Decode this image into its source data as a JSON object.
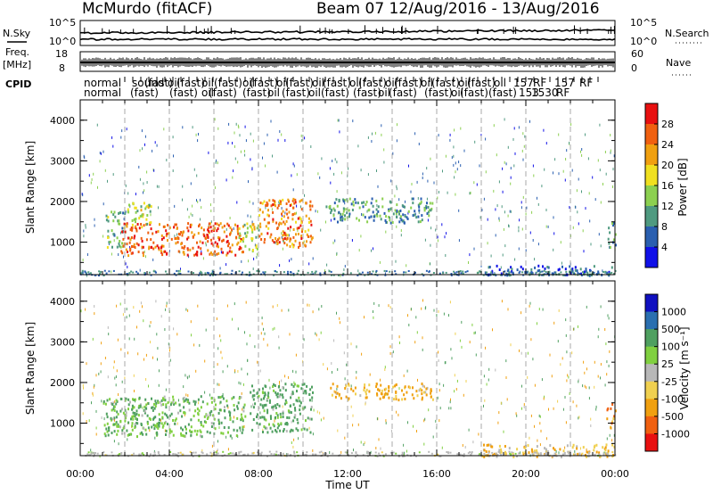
{
  "header": {
    "station": "McMurdo (fitACF)",
    "beam_info": "Beam 07  12/Aug/2016 - 13/Aug/2016"
  },
  "status_panels": {
    "nsky_label": "N.Sky",
    "nsearch_label": "N.Search",
    "nsky_ticks": [
      "10^5",
      "10^0"
    ],
    "nsearch_ticks": [
      "10^5",
      "10^0"
    ],
    "freq_label": "Freq.",
    "freq_unit": "[MHz]",
    "freq_ticks": [
      "18",
      "8"
    ],
    "nave_label": "Nave",
    "nave_ticks": [
      "60",
      "0"
    ],
    "cpid_label": "CPID",
    "cpid_top": [
      {
        "t": "normal",
        "x": 94
      },
      {
        "t": "sound",
        "x": 148
      },
      {
        "t": "(fast)",
        "x": 162
      },
      {
        "t": "oil",
        "x": 188
      },
      {
        "t": "(fast)",
        "x": 198
      },
      {
        "t": "oil",
        "x": 226
      },
      {
        "t": "(fast)",
        "x": 240
      },
      {
        "t": "oil",
        "x": 272
      },
      {
        "t": "(fast)",
        "x": 280
      },
      {
        "t": "oil",
        "x": 310
      },
      {
        "t": "(fast)",
        "x": 320
      },
      {
        "t": "oil",
        "x": 350
      },
      {
        "t": "(fast)",
        "x": 362
      },
      {
        "t": "oil",
        "x": 392
      },
      {
        "t": "(fast)",
        "x": 402
      },
      {
        "t": "oil",
        "x": 432
      },
      {
        "t": "(fast)",
        "x": 442
      },
      {
        "t": "oil",
        "x": 472
      },
      {
        "t": "(fast)",
        "x": 484
      },
      {
        "t": "oil",
        "x": 514
      },
      {
        "t": "(fast)",
        "x": 524
      },
      {
        "t": "oil",
        "x": 554
      },
      {
        "t": "157",
        "x": 576
      },
      {
        "t": "RF",
        "x": 598
      },
      {
        "t": "157",
        "x": 622
      },
      {
        "t": "RF",
        "x": 650
      }
    ],
    "cpid_bottom": [
      {
        "t": "normal",
        "x": 94
      },
      {
        "t": "(fast)",
        "x": 146
      },
      {
        "t": "(fast)",
        "x": 190
      },
      {
        "t": "oil",
        "x": 226
      },
      {
        "t": "(fast)",
        "x": 234
      },
      {
        "t": "(fast)",
        "x": 272
      },
      {
        "t": "oil",
        "x": 300
      },
      {
        "t": "(fast)",
        "x": 316
      },
      {
        "t": "oil",
        "x": 346
      },
      {
        "t": "(fast)",
        "x": 360
      },
      {
        "t": "(fast)",
        "x": 396
      },
      {
        "t": "oil",
        "x": 424
      },
      {
        "t": "(fast)",
        "x": 436
      },
      {
        "t": "(fast)",
        "x": 476
      },
      {
        "t": "oil",
        "x": 506
      },
      {
        "t": "(fast)",
        "x": 516
      },
      {
        "t": "(fast)",
        "x": 548
      },
      {
        "t": "153",
        "x": 582
      },
      {
        "t": "1530",
        "x": 596
      },
      {
        "t": "RF",
        "x": 624
      }
    ]
  },
  "colors": {
    "power_scale": [
      "#1010e8",
      "#2a5fb0",
      "#4f9a80",
      "#8cd050",
      "#f0e020",
      "#f0a010",
      "#f06010",
      "#e81010"
    ],
    "velocity_scale": [
      "#e81010",
      "#f06010",
      "#f0a010",
      "#f0d050",
      "#b8b8b8",
      "#80d040",
      "#4fa060",
      "#2a6fb0",
      "#1010c0"
    ]
  },
  "chart_data": [
    {
      "type": "heatmap",
      "panel": "power",
      "ylabel": "Slant Range [km]",
      "ylim": [
        200,
        4500
      ],
      "y_ticks": [
        "4000",
        "3000",
        "2000",
        "1000"
      ],
      "x_range_hours": [
        0,
        24
      ],
      "colorbar": {
        "label": "Power [dB]",
        "ticks": [
          "28",
          "24",
          "20",
          "16",
          "12",
          "8",
          "4"
        ],
        "range": [
          0,
          32
        ]
      },
      "echo_regions": [
        {
          "t0": 1.1,
          "t1": 2.0,
          "r0": 900,
          "r1": 1800,
          "level": 12
        },
        {
          "t0": 1.8,
          "t1": 7.3,
          "r0": 700,
          "r1": 1500,
          "level": 26
        },
        {
          "t0": 2.0,
          "t1": 3.2,
          "r0": 1400,
          "r1": 2000,
          "level": 16
        },
        {
          "t0": 7.0,
          "t1": 8.0,
          "r0": 800,
          "r1": 1500,
          "level": 16
        },
        {
          "t0": 8.0,
          "t1": 10.4,
          "r0": 900,
          "r1": 2100,
          "level": 24
        },
        {
          "t0": 11.0,
          "t1": 15.8,
          "r0": 1500,
          "r1": 2100,
          "level": 10
        },
        {
          "t0": 18.0,
          "t1": 24.0,
          "r0": 200,
          "r1": 450,
          "level": 6
        },
        {
          "t0": 23.6,
          "t1": 24.0,
          "r0": 900,
          "r1": 1500,
          "level": 10
        }
      ]
    },
    {
      "type": "heatmap",
      "panel": "velocity",
      "ylabel": "Slant Range [km]",
      "xlabel": "Time UT",
      "ylim": [
        200,
        4500
      ],
      "y_ticks": [
        "4000",
        "3000",
        "2000",
        "1000"
      ],
      "x_range_hours": [
        0,
        24
      ],
      "x_ticks": [
        "00:00",
        "04:00",
        "08:00",
        "12:00",
        "16:00",
        "20:00",
        "00:00"
      ],
      "colorbar": {
        "label": "Velocity [m s⁻¹]",
        "ticks": [
          "1000",
          "500",
          "100",
          "25",
          "-25",
          "-100",
          "-500",
          "-1000"
        ]
      },
      "echo_regions": [
        {
          "t0": 1.0,
          "t1": 7.4,
          "r0": 700,
          "r1": 1700,
          "level": 100
        },
        {
          "t0": 7.6,
          "t1": 10.4,
          "r0": 800,
          "r1": 2000,
          "level": 200
        },
        {
          "t0": 11.2,
          "t1": 15.8,
          "r0": 1600,
          "r1": 2000,
          "level": -150
        },
        {
          "t0": 18.0,
          "t1": 24.0,
          "r0": 200,
          "r1": 500,
          "level": -80
        },
        {
          "t0": 23.6,
          "t1": 24.0,
          "r0": 900,
          "r1": 1500,
          "level": -300
        }
      ]
    }
  ]
}
